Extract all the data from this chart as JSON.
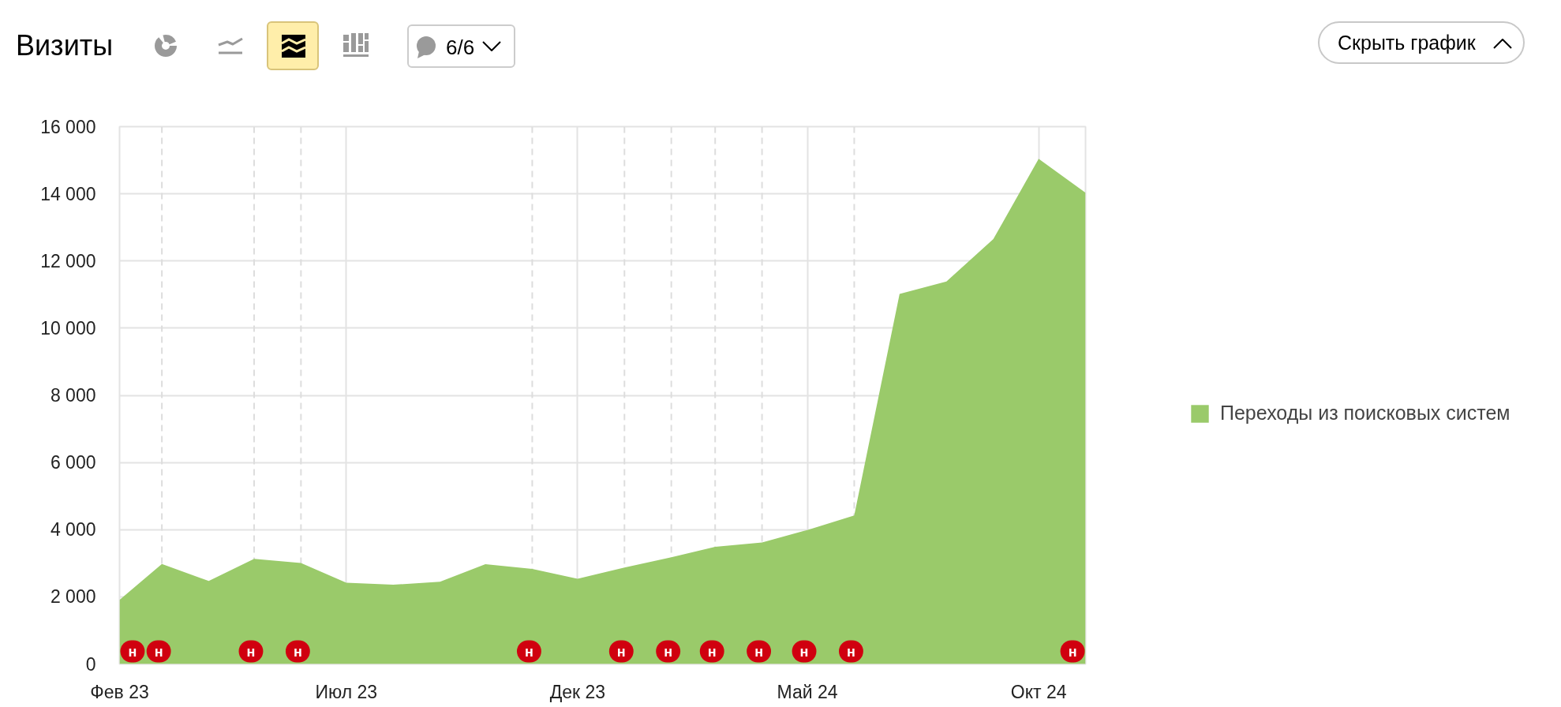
{
  "chart_data": {
    "type": "area",
    "title": "Визиты",
    "x": [
      "2023-02",
      "2023-03",
      "2023-04",
      "2023-05",
      "2023-06",
      "2023-07",
      "2023-08",
      "2023-09",
      "2023-10",
      "2023-11",
      "2023-12",
      "2024-01",
      "2024-02",
      "2024-03",
      "2024-04",
      "2024-05",
      "2024-06",
      "2024-07",
      "2024-08",
      "2024-09",
      "2024-10",
      "2024-11"
    ],
    "series": [
      {
        "name": "Переходы из поисковых систем",
        "color": "#9aca6a",
        "values": [
          1910,
          2980,
          2470,
          3130,
          3010,
          2420,
          2360,
          2450,
          2970,
          2830,
          2540,
          2870,
          3180,
          3490,
          3620,
          3990,
          4420,
          11020,
          11390,
          12650,
          15040,
          14030
        ]
      }
    ],
    "xlim": [
      "2023-02",
      "2024-11"
    ],
    "ylim": [
      0,
      16000
    ],
    "xticks": [
      {
        "value": "2023-02",
        "label": "Фев 23"
      },
      {
        "value": "2023-07",
        "label": "Июл 23"
      },
      {
        "value": "2023-12",
        "label": "Дек 23"
      },
      {
        "value": "2024-05",
        "label": "Май 24"
      },
      {
        "value": "2024-10",
        "label": "Окт 24"
      }
    ],
    "yticks": [
      0,
      {
        "value": 2000,
        "label": "2 000"
      },
      {
        "value": 4000,
        "label": "4 000"
      },
      {
        "value": 6000,
        "label": "6 000"
      },
      {
        "value": 8000,
        "label": "8 000"
      },
      {
        "value": 10000,
        "label": "10 000"
      },
      {
        "value": 12000,
        "label": "12 000"
      },
      {
        "value": 14000,
        "label": "14 000"
      },
      {
        "value": 16000,
        "label": "16 000"
      }
    ],
    "grid": true,
    "legend": "right",
    "ref_lines": [
      {
        "axis": "x",
        "value": "2023-03",
        "color": "#dddddd",
        "line_style": "dashed"
      },
      {
        "axis": "x",
        "value": "2023-05",
        "color": "#dddddd",
        "line_style": "dashed"
      },
      {
        "axis": "x",
        "value": "2023-06",
        "color": "#dddddd",
        "line_style": "dashed"
      },
      {
        "axis": "x",
        "value": "2023-11",
        "color": "#dddddd",
        "line_style": "dashed"
      },
      {
        "axis": "x",
        "value": "2024-01",
        "color": "#dddddd",
        "line_style": "dashed"
      },
      {
        "axis": "x",
        "value": "2024-02",
        "color": "#dddddd",
        "line_style": "dashed"
      },
      {
        "axis": "x",
        "value": "2024-03",
        "color": "#dddddd",
        "line_style": "dashed"
      },
      {
        "axis": "x",
        "value": "2024-04",
        "color": "#dddddd",
        "line_style": "dashed"
      },
      {
        "axis": "x",
        "value": "2024-06",
        "color": "#dddddd",
        "line_style": "dashed"
      }
    ],
    "annotations": [
      "6/6",
      "Скрыть график",
      {
        "text": "н",
        "x": "2023-02",
        "y": 0
      },
      {
        "text": "н",
        "x": "2023-03",
        "y": 0
      },
      {
        "text": "н",
        "x": "2023-05",
        "y": 0
      },
      {
        "text": "н",
        "x": "2023-06",
        "y": 0
      },
      {
        "text": "н",
        "x": "2023-11",
        "y": 0
      },
      {
        "text": "н",
        "x": "2024-01",
        "y": 0
      },
      {
        "text": "н",
        "x": "2024-02",
        "y": 0
      },
      {
        "text": "н",
        "x": "2024-03",
        "y": 0
      },
      {
        "text": "н",
        "x": "2024-04",
        "y": 0
      },
      {
        "text": "н",
        "x": "2024-05",
        "y": 0
      },
      {
        "text": "н",
        "x": "2024-06",
        "y": 0
      },
      {
        "text": "н",
        "x": "2024-11",
        "y": 0
      }
    ]
  }
}
